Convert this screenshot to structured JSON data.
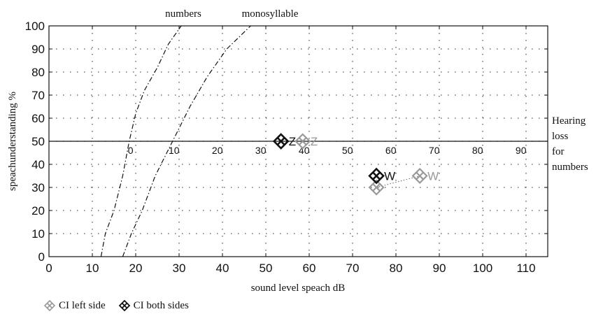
{
  "chart_data": {
    "type": "scatter",
    "title": "",
    "xlabel": "sound level speach dB",
    "ylabel": "speachunderstanding %",
    "xlim": [
      0,
      115
    ],
    "ylim": [
      0,
      100
    ],
    "x_ticks": [
      "0",
      "10",
      "20",
      "30",
      "40",
      "50",
      "60",
      "70",
      "80",
      "90",
      "100",
      "110"
    ],
    "y_ticks": [
      "0",
      "10",
      "20",
      "30",
      "40",
      "50",
      "60",
      "70",
      "80",
      "90",
      "100"
    ],
    "grid": "dotted",
    "reference_line": {
      "y": 50,
      "label_lines": [
        "Hearing",
        "loss",
        "for",
        "numbers"
      ]
    },
    "hearing_loss_scale": {
      "at_y": 50,
      "offset_x": 18.5,
      "labels": [
        "0",
        "10",
        "20",
        "30",
        "40",
        "50",
        "60",
        "70",
        "80",
        "90"
      ]
    },
    "curves": [
      {
        "name": "numbers",
        "x": [
          12.0,
          13.0,
          15.0,
          17.0,
          18.5,
          20.0,
          22.0,
          25.0,
          27.5,
          30.5
        ],
        "y": [
          0,
          10,
          20,
          35,
          50,
          62,
          72,
          82,
          92,
          100
        ]
      },
      {
        "name": "monosyllable",
        "x": [
          17.0,
          19.0,
          21.5,
          24.5,
          28.5,
          32.5,
          36.5,
          41.0,
          46.5
        ],
        "y": [
          0,
          10,
          20,
          35,
          50,
          65,
          78,
          90,
          100
        ]
      }
    ],
    "series": [
      {
        "name": "CI left side",
        "color": "#999999",
        "points": [
          {
            "x": 58.5,
            "y": 50,
            "label": "Z"
          },
          {
            "x": 75.5,
            "y": 30,
            "label": ""
          },
          {
            "x": 85.5,
            "y": 35,
            "label": "W"
          }
        ]
      },
      {
        "name": "CI both sides",
        "color": "#111111",
        "points": [
          {
            "x": 53.5,
            "y": 50,
            "label": "Z"
          },
          {
            "x": 75.5,
            "y": 35,
            "label": "W"
          }
        ]
      }
    ],
    "connector": {
      "from": [
        75.5,
        30
      ],
      "to": [
        85.5,
        35
      ],
      "style": "dotted"
    }
  },
  "legend": {
    "items": [
      {
        "label": "CI left side",
        "color": "#999999"
      },
      {
        "label": "CI both sides",
        "color": "#111111"
      }
    ]
  }
}
